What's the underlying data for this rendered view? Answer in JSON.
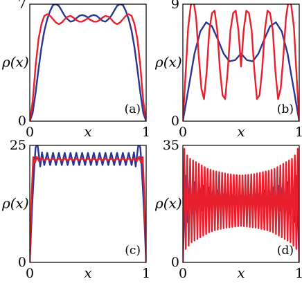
{
  "chart_data": [
    {
      "type": "line",
      "panel_label": "(a)",
      "xlabel": "x",
      "ylabel": "ρ(x)",
      "xlim": [
        0,
        1
      ],
      "ylim": [
        0,
        7
      ],
      "xticks": [
        "0",
        "1"
      ],
      "yticks": [
        "0",
        "7"
      ],
      "series": [
        {
          "color": "#283593",
          "x": [
            0,
            0.025,
            0.05,
            0.075,
            0.1,
            0.125,
            0.15,
            0.175,
            0.2,
            0.225,
            0.25,
            0.275,
            0.3,
            0.325,
            0.35,
            0.375,
            0.4,
            0.425,
            0.45,
            0.475,
            0.5,
            0.525,
            0.55,
            0.575,
            0.6,
            0.625,
            0.65,
            0.675,
            0.7,
            0.725,
            0.75,
            0.775,
            0.8,
            0.825,
            0.85,
            0.875,
            0.9,
            0.925,
            0.95,
            0.975,
            1
          ],
          "y": [
            0,
            0.5,
            1.7,
            3.1,
            4.4,
            5.4,
            6.1,
            6.6,
            6.95,
            7.0,
            6.9,
            6.6,
            6.3,
            6.1,
            5.95,
            6.0,
            6.15,
            6.3,
            6.35,
            6.3,
            6.2,
            6.3,
            6.35,
            6.3,
            6.15,
            6.0,
            5.95,
            6.1,
            6.3,
            6.6,
            6.9,
            7.0,
            6.95,
            6.6,
            6.1,
            5.4,
            4.4,
            3.1,
            1.7,
            0.5,
            0
          ]
        },
        {
          "color": "#e8202e",
          "x": [
            0,
            0.025,
            0.05,
            0.075,
            0.1,
            0.125,
            0.15,
            0.175,
            0.2,
            0.225,
            0.25,
            0.275,
            0.3,
            0.325,
            0.35,
            0.375,
            0.4,
            0.425,
            0.45,
            0.475,
            0.5,
            0.525,
            0.55,
            0.575,
            0.6,
            0.625,
            0.65,
            0.675,
            0.7,
            0.725,
            0.75,
            0.775,
            0.8,
            0.825,
            0.85,
            0.875,
            0.9,
            0.925,
            0.95,
            0.975,
            1
          ],
          "y": [
            0,
            1.2,
            3.3,
            4.9,
            5.8,
            6.3,
            6.4,
            6.3,
            6.1,
            5.9,
            5.8,
            5.9,
            6.1,
            6.25,
            6.3,
            6.2,
            6.05,
            5.95,
            5.95,
            6.05,
            6.15,
            6.05,
            5.95,
            5.95,
            6.05,
            6.2,
            6.3,
            6.25,
            6.1,
            5.9,
            5.8,
            5.9,
            6.1,
            6.3,
            6.4,
            6.3,
            5.8,
            4.9,
            3.3,
            1.2,
            0
          ]
        }
      ]
    },
    {
      "type": "line",
      "panel_label": "(b)",
      "xlabel": "x",
      "ylabel": "ρ(x)",
      "xlim": [
        0,
        1
      ],
      "ylim": [
        0,
        9
      ],
      "xticks": [
        "0",
        "1"
      ],
      "yticks": [
        "0",
        "9"
      ],
      "series": [
        {
          "color": "#283593",
          "x": [
            0,
            0.05,
            0.1,
            0.15,
            0.2,
            0.25,
            0.3,
            0.35,
            0.4,
            0.45,
            0.5,
            0.55,
            0.6,
            0.65,
            0.7,
            0.75,
            0.8,
            0.85,
            0.9,
            0.95,
            1
          ],
          "y": [
            0,
            2.6,
            5.2,
            6.9,
            7.6,
            7.3,
            6.3,
            5.2,
            4.6,
            4.7,
            5.2,
            4.7,
            4.6,
            5.2,
            6.3,
            7.3,
            7.6,
            6.9,
            5.2,
            2.6,
            0
          ]
        },
        {
          "color": "#e8202e",
          "x": [
            0,
            0.0227,
            0.0455,
            0.0682,
            0.0909,
            0.1136,
            0.1364,
            0.1591,
            0.1818,
            0.2045,
            0.2273,
            0.25,
            0.2727,
            0.2955,
            0.3182,
            0.3409,
            0.3636,
            0.3864,
            0.4091,
            0.4318,
            0.4545,
            0.4773,
            0.5,
            0.5227,
            0.5455,
            0.5682,
            0.5909,
            0.6136,
            0.6364,
            0.6591,
            0.6818,
            0.7045,
            0.7273,
            0.75,
            0.7727,
            0.7955,
            0.8182,
            0.8409,
            0.8636,
            0.8864,
            0.9091,
            0.9318,
            0.9545,
            0.9773,
            1
          ],
          "y": [
            0,
            3.5,
            7.2,
            8.9,
            9.3,
            8.0,
            5.0,
            2.5,
            1.7,
            3.8,
            7.0,
            8.3,
            8.5,
            7.0,
            4.0,
            2.0,
            1.7,
            4.0,
            7.0,
            8.3,
            8.5,
            7.0,
            4.2,
            7.0,
            8.5,
            8.3,
            7.0,
            4.0,
            1.7,
            2.0,
            4.0,
            7.0,
            8.5,
            8.3,
            7.0,
            3.8,
            1.7,
            2.5,
            5.0,
            8.0,
            9.3,
            8.9,
            7.2,
            3.5,
            0
          ]
        }
      ]
    },
    {
      "type": "line",
      "panel_label": "(c)",
      "xlabel": "x",
      "ylabel": "ρ(x)",
      "xlim": [
        0,
        1
      ],
      "ylim": [
        0,
        25
      ],
      "xticks": [
        "0",
        "1"
      ],
      "yticks": [
        "0",
        "25"
      ],
      "series": [
        {
          "color": "#283593",
          "x": [
            0,
            0.02,
            0.04,
            0.05,
            0.065,
            0.08,
            0.09,
            0.105,
            0.125,
            0.15,
            0.175,
            0.2,
            0.225,
            0.25,
            0.275,
            0.3,
            0.325,
            0.35,
            0.375,
            0.4,
            0.425,
            0.45,
            0.475,
            0.5,
            0.525,
            0.55,
            0.575,
            0.6,
            0.625,
            0.65,
            0.675,
            0.7,
            0.725,
            0.75,
            0.775,
            0.8,
            0.825,
            0.85,
            0.875,
            0.895,
            0.91,
            0.92,
            0.935,
            0.95,
            0.96,
            0.98,
            1
          ],
          "y": [
            0,
            12,
            21,
            24.5,
            25.5,
            22.5,
            20.5,
            23.5,
            20.8,
            23.4,
            20.8,
            23.4,
            20.8,
            23.4,
            20.8,
            23.4,
            20.8,
            23.4,
            20.8,
            23.4,
            20.8,
            23.4,
            20.8,
            23.4,
            20.8,
            23.4,
            20.8,
            23.4,
            20.8,
            23.4,
            20.8,
            23.4,
            20.8,
            23.4,
            20.8,
            23.4,
            20.8,
            23.4,
            20.8,
            23.5,
            20.5,
            22.5,
            25.5,
            24.5,
            21,
            12,
            0
          ]
        },
        {
          "color": "#e8202e",
          "x": [
            0,
            0.015,
            0.03,
            0.045,
            0.06,
            0.08,
            0.1,
            0.125,
            0.15,
            0.175,
            0.2,
            0.225,
            0.25,
            0.275,
            0.3,
            0.325,
            0.35,
            0.375,
            0.4,
            0.425,
            0.45,
            0.475,
            0.5,
            0.525,
            0.55,
            0.575,
            0.6,
            0.625,
            0.65,
            0.675,
            0.7,
            0.725,
            0.75,
            0.775,
            0.8,
            0.825,
            0.85,
            0.875,
            0.9,
            0.92,
            0.94,
            0.955,
            0.97,
            0.985,
            1
          ],
          "y": [
            0,
            14,
            22.5,
            21.3,
            22.6,
            21.6,
            22.3,
            21.8,
            22.2,
            21.8,
            22.2,
            21.8,
            22.2,
            21.8,
            22.2,
            21.8,
            22.2,
            21.8,
            22.2,
            21.8,
            22.2,
            21.8,
            22.2,
            21.8,
            22.2,
            21.8,
            22.2,
            21.8,
            22.2,
            21.8,
            22.2,
            21.8,
            22.2,
            21.8,
            22.2,
            21.8,
            22.2,
            21.8,
            22.3,
            21.6,
            22.6,
            21.3,
            22.5,
            14,
            0
          ]
        }
      ]
    },
    {
      "type": "line",
      "panel_label": "(d)",
      "xlabel": "x",
      "ylabel": "ρ(x)",
      "xlim": [
        0,
        1
      ],
      "ylim": [
        0,
        35
      ],
      "xticks": [
        "0",
        "1"
      ],
      "yticks": [
        "0",
        "35"
      ],
      "series": [
        {
          "color": "#283593",
          "x": [
            0,
            0.02,
            0.04,
            0.06,
            0.08,
            0.1,
            0.12,
            0.14,
            0.16,
            0.18,
            0.2,
            0.22,
            0.24,
            0.26,
            0.28,
            0.3,
            0.32,
            0.34,
            0.36,
            0.38,
            0.4,
            0.42,
            0.44,
            0.46,
            0.48,
            0.5,
            0.52,
            0.54,
            0.56,
            0.58,
            0.6,
            0.62,
            0.64,
            0.66,
            0.68,
            0.7,
            0.72,
            0.74,
            0.76,
            0.78,
            0.8,
            0.82,
            0.84,
            0.86,
            0.88,
            0.9,
            0.92,
            0.94,
            0.96,
            0.98,
            1
          ],
          "y": [
            0,
            26,
            12,
            25,
            14,
            24,
            15,
            23.5,
            15.5,
            23,
            16,
            22.5,
            16.5,
            22,
            17,
            21.5,
            17.5,
            21,
            18,
            20.5,
            18.5,
            20.2,
            18.8,
            20,
            19,
            20,
            19,
            20,
            18.8,
            20.2,
            18.5,
            20.5,
            18,
            21,
            17.5,
            21.5,
            17,
            22,
            16.5,
            22.5,
            16,
            23,
            15.5,
            23.5,
            15,
            24,
            14,
            25,
            12,
            26,
            0
          ]
        },
        {
          "color": "#e8202e",
          "x": [
            0,
            0.0125,
            0.025,
            0.0375,
            0.05,
            0.0625,
            0.075,
            0.0875,
            0.1,
            0.1125,
            0.125,
            0.1375,
            0.15,
            0.1625,
            0.175,
            0.1875,
            0.2,
            0.2125,
            0.225,
            0.2375,
            0.25,
            0.2625,
            0.275,
            0.2875,
            0.3,
            0.3125,
            0.325,
            0.3375,
            0.35,
            0.3625,
            0.375,
            0.3875,
            0.4,
            0.4125,
            0.425,
            0.4375,
            0.45,
            0.4625,
            0.475,
            0.4875,
            0.5,
            0.5125,
            0.525,
            0.5375,
            0.55,
            0.5625,
            0.575,
            0.5875,
            0.6,
            0.6125,
            0.625,
            0.6375,
            0.65,
            0.6625,
            0.675,
            0.6875,
            0.7,
            0.7125,
            0.725,
            0.7375,
            0.75,
            0.7625,
            0.775,
            0.7875,
            0.8,
            0.8125,
            0.825,
            0.8375,
            0.85,
            0.8625,
            0.875,
            0.8875,
            0.9,
            0.9125,
            0.925,
            0.9375,
            0.95,
            0.9625,
            0.975,
            0.9875,
            1
          ],
          "y": [
            0,
            34,
            4,
            32,
            5,
            31,
            6,
            30.5,
            6.5,
            30,
            7,
            29.5,
            7.5,
            29,
            8,
            28.5,
            8.5,
            28,
            9,
            27.7,
            9.3,
            27.4,
            9.6,
            27.2,
            9.8,
            27,
            10,
            26.8,
            10.2,
            26.6,
            10.4,
            26.4,
            10.5,
            26.3,
            10.6,
            26.2,
            10.7,
            26.1,
            10.8,
            26,
            10.9,
            26,
            10.8,
            26.1,
            10.7,
            26.2,
            10.6,
            26.3,
            10.5,
            26.4,
            10.4,
            26.6,
            10.2,
            26.8,
            10,
            27,
            9.8,
            27.2,
            9.6,
            27.4,
            9.3,
            27.7,
            9,
            28,
            8.5,
            28.5,
            8,
            29,
            7.5,
            29.5,
            7,
            30,
            6.5,
            30.5,
            6,
            31,
            5,
            32,
            4,
            34,
            0
          ]
        }
      ]
    }
  ]
}
